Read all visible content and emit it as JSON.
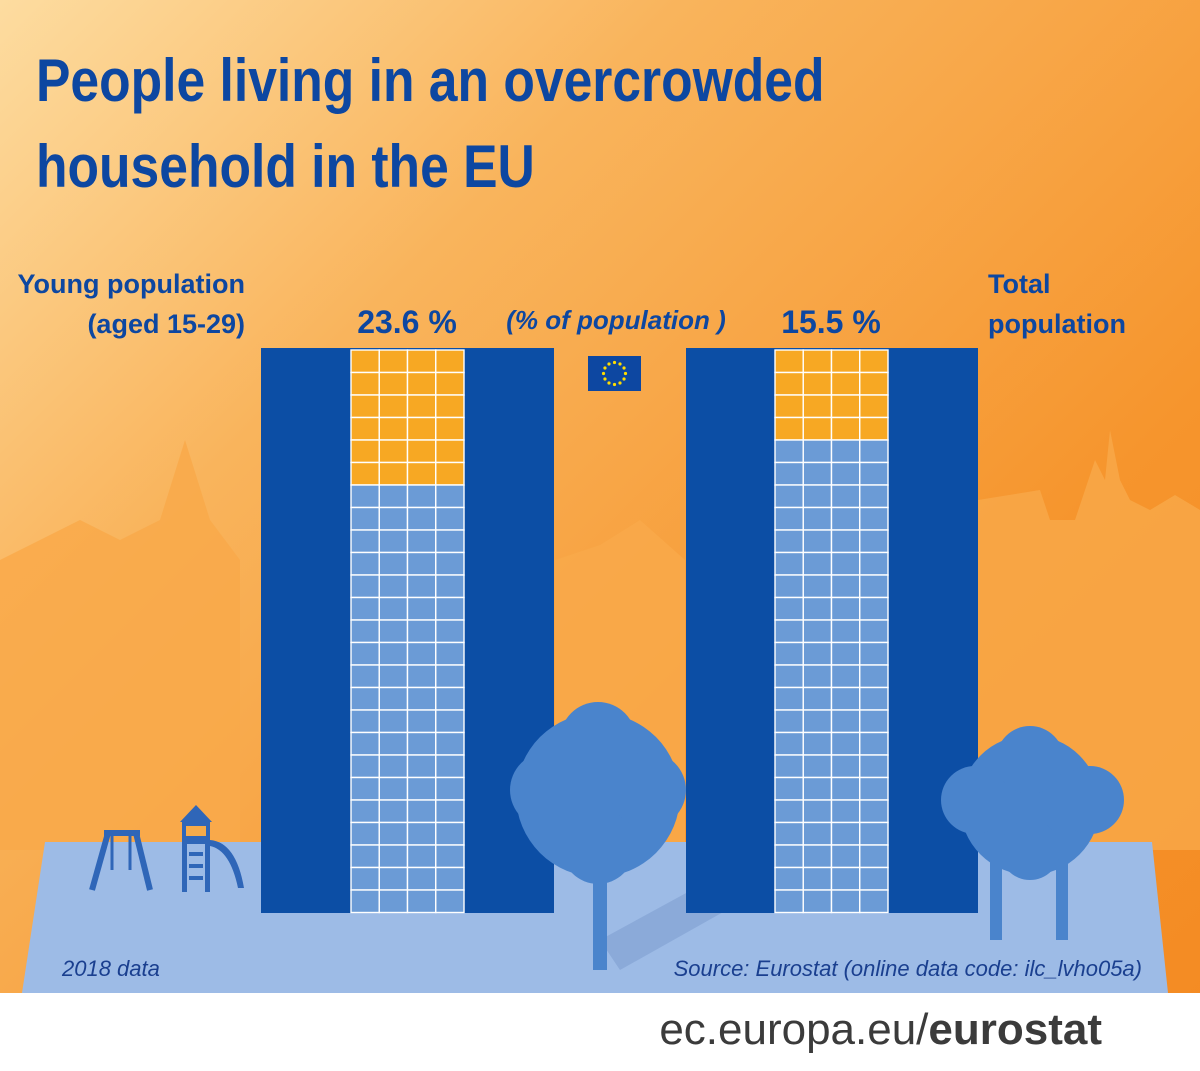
{
  "title": "People living in an overcrowded household in the EU",
  "chart_data": {
    "type": "waffle",
    "unit_label": "(% of population )",
    "series": [
      {
        "label_lines": [
          "Young population",
          "(aged 15-29)"
        ],
        "value": 23.6,
        "value_label": "23.6 %"
      },
      {
        "label_lines": [
          "Total",
          "population"
        ],
        "value": 15.5,
        "value_label": "15.5 %"
      }
    ],
    "cells_total": 100,
    "grid_columns": 4,
    "grid_rows": 25,
    "highlight_color": "#f7a823",
    "base_color": "#6b9bd6",
    "building_color": "#0c4ea5"
  },
  "footer": {
    "data_year": "2018 data",
    "source": "Source: Eurostat (online data code: ilc_lvho05a)",
    "url_prefix": "ec.europa.eu/",
    "url_brand": "eurostat"
  },
  "icons": [
    "eu-flag-icon",
    "swing-set-icon",
    "playhouse-icon",
    "tree-icon",
    "city-skyline"
  ]
}
